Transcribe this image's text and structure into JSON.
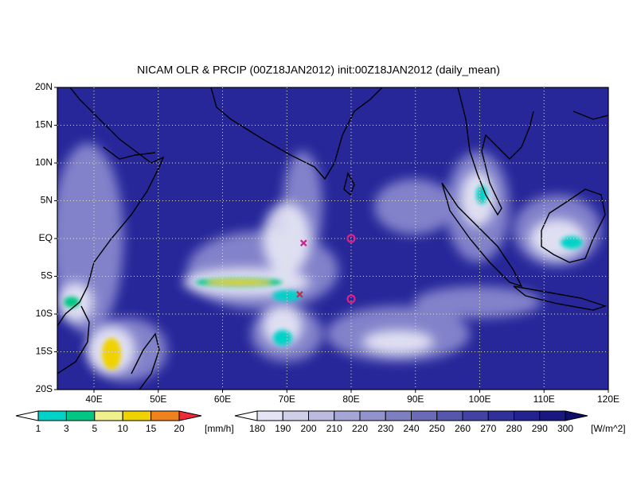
{
  "title": "NICAM OLR & PRCIP (00Z18JAN2012) init:00Z18JAN2012 (daily_mean)",
  "map": {
    "xlim": [
      34.3,
      120
    ],
    "ylim": [
      -20,
      20
    ],
    "grid": true,
    "background": "#27279a",
    "xticks": [
      {
        "value": 40,
        "label": "40E"
      },
      {
        "value": 50,
        "label": "50E"
      },
      {
        "value": 60,
        "label": "60E"
      },
      {
        "value": 70,
        "label": "70E"
      },
      {
        "value": 80,
        "label": "80E"
      },
      {
        "value": 90,
        "label": "90E"
      },
      {
        "value": 100,
        "label": "100E"
      },
      {
        "value": 110,
        "label": "110E"
      },
      {
        "value": 120,
        "label": "120E"
      }
    ],
    "yticks": [
      {
        "value": 20,
        "label": "20N"
      },
      {
        "value": 15,
        "label": "15N"
      },
      {
        "value": 10,
        "label": "10N"
      },
      {
        "value": 5,
        "label": "5N"
      },
      {
        "value": 0,
        "label": "EQ"
      },
      {
        "value": -5,
        "label": "5S"
      },
      {
        "value": -10,
        "label": "10S"
      },
      {
        "value": -15,
        "label": "15S"
      },
      {
        "value": -20,
        "label": "20S"
      }
    ],
    "markers": [
      {
        "lon": 72.6,
        "lat": -0.6,
        "symbol": "x",
        "color": "#d0208a"
      },
      {
        "lon": 72.0,
        "lat": -7.4,
        "symbol": "x",
        "color": "#e02040"
      },
      {
        "lon": 80.0,
        "lat": 0.0,
        "symbol": "o",
        "color": "#e0208a"
      },
      {
        "lon": 80.0,
        "lat": -8.0,
        "symbol": "o",
        "color": "#e0208a"
      }
    ]
  },
  "precip_bar": {
    "levels": [
      1,
      3,
      5,
      10,
      15,
      20
    ],
    "unit": "[mm/h]",
    "colors": [
      "#ffffff",
      "#00d2c8",
      "#00c884",
      "#f0f08c",
      "#f0d200",
      "#f0821e",
      "#f0283c"
    ]
  },
  "olr_bar": {
    "levels": [
      180,
      190,
      200,
      210,
      220,
      230,
      240,
      250,
      260,
      270,
      280,
      290,
      300
    ],
    "unit": "[W/m^2]",
    "colors": [
      "#ffffff",
      "#e4e4f4",
      "#cfcfea",
      "#bbbbe0",
      "#a6a6d6",
      "#9292cc",
      "#7e7ec2",
      "#6a6ab8",
      "#5656ae",
      "#4242a4",
      "#30309a",
      "#222290",
      "#181880",
      "#0e0e6a"
    ]
  }
}
